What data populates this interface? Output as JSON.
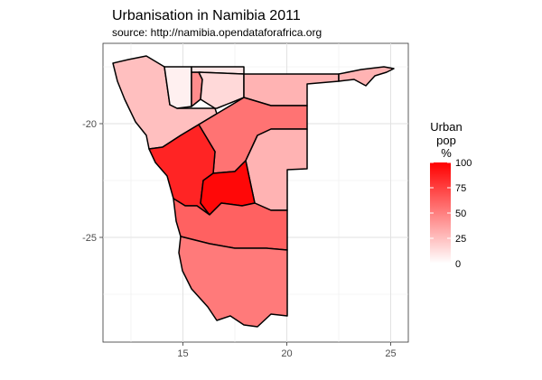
{
  "chart_data": {
    "type": "choropleth",
    "title": "Urbanisation in Namibia 2011",
    "subtitle": "source: http://namibia.opendataforafrica.org",
    "x_ticks": [
      15,
      20,
      25
    ],
    "y_ticks": [
      -20,
      -25
    ],
    "xlim": [
      11.5,
      26
    ],
    "ylim": [
      -29.5,
      -16.5
    ],
    "legend": {
      "title_lines": [
        "Urban",
        "pop",
        "%"
      ],
      "ticks": [
        0,
        25,
        50,
        75,
        100
      ],
      "range": [
        0,
        100
      ],
      "color_low": "#ffffff",
      "color_high": "#ff0000"
    },
    "regions": [
      {
        "id": "kunene",
        "value": 25
      },
      {
        "id": "omusati",
        "value": 6
      },
      {
        "id": "oshana",
        "value": 45
      },
      {
        "id": "ohangwena",
        "value": 10
      },
      {
        "id": "oshikoto",
        "value": 15
      },
      {
        "id": "kavango",
        "value": 30
      },
      {
        "id": "zambezi",
        "value": 30
      },
      {
        "id": "otjozondjupa",
        "value": 55
      },
      {
        "id": "omaheke",
        "value": 30
      },
      {
        "id": "erongo",
        "value": 86
      },
      {
        "id": "khomas",
        "value": 97
      },
      {
        "id": "hardap",
        "value": 62
      },
      {
        "id": "karas",
        "value": 52
      }
    ]
  }
}
